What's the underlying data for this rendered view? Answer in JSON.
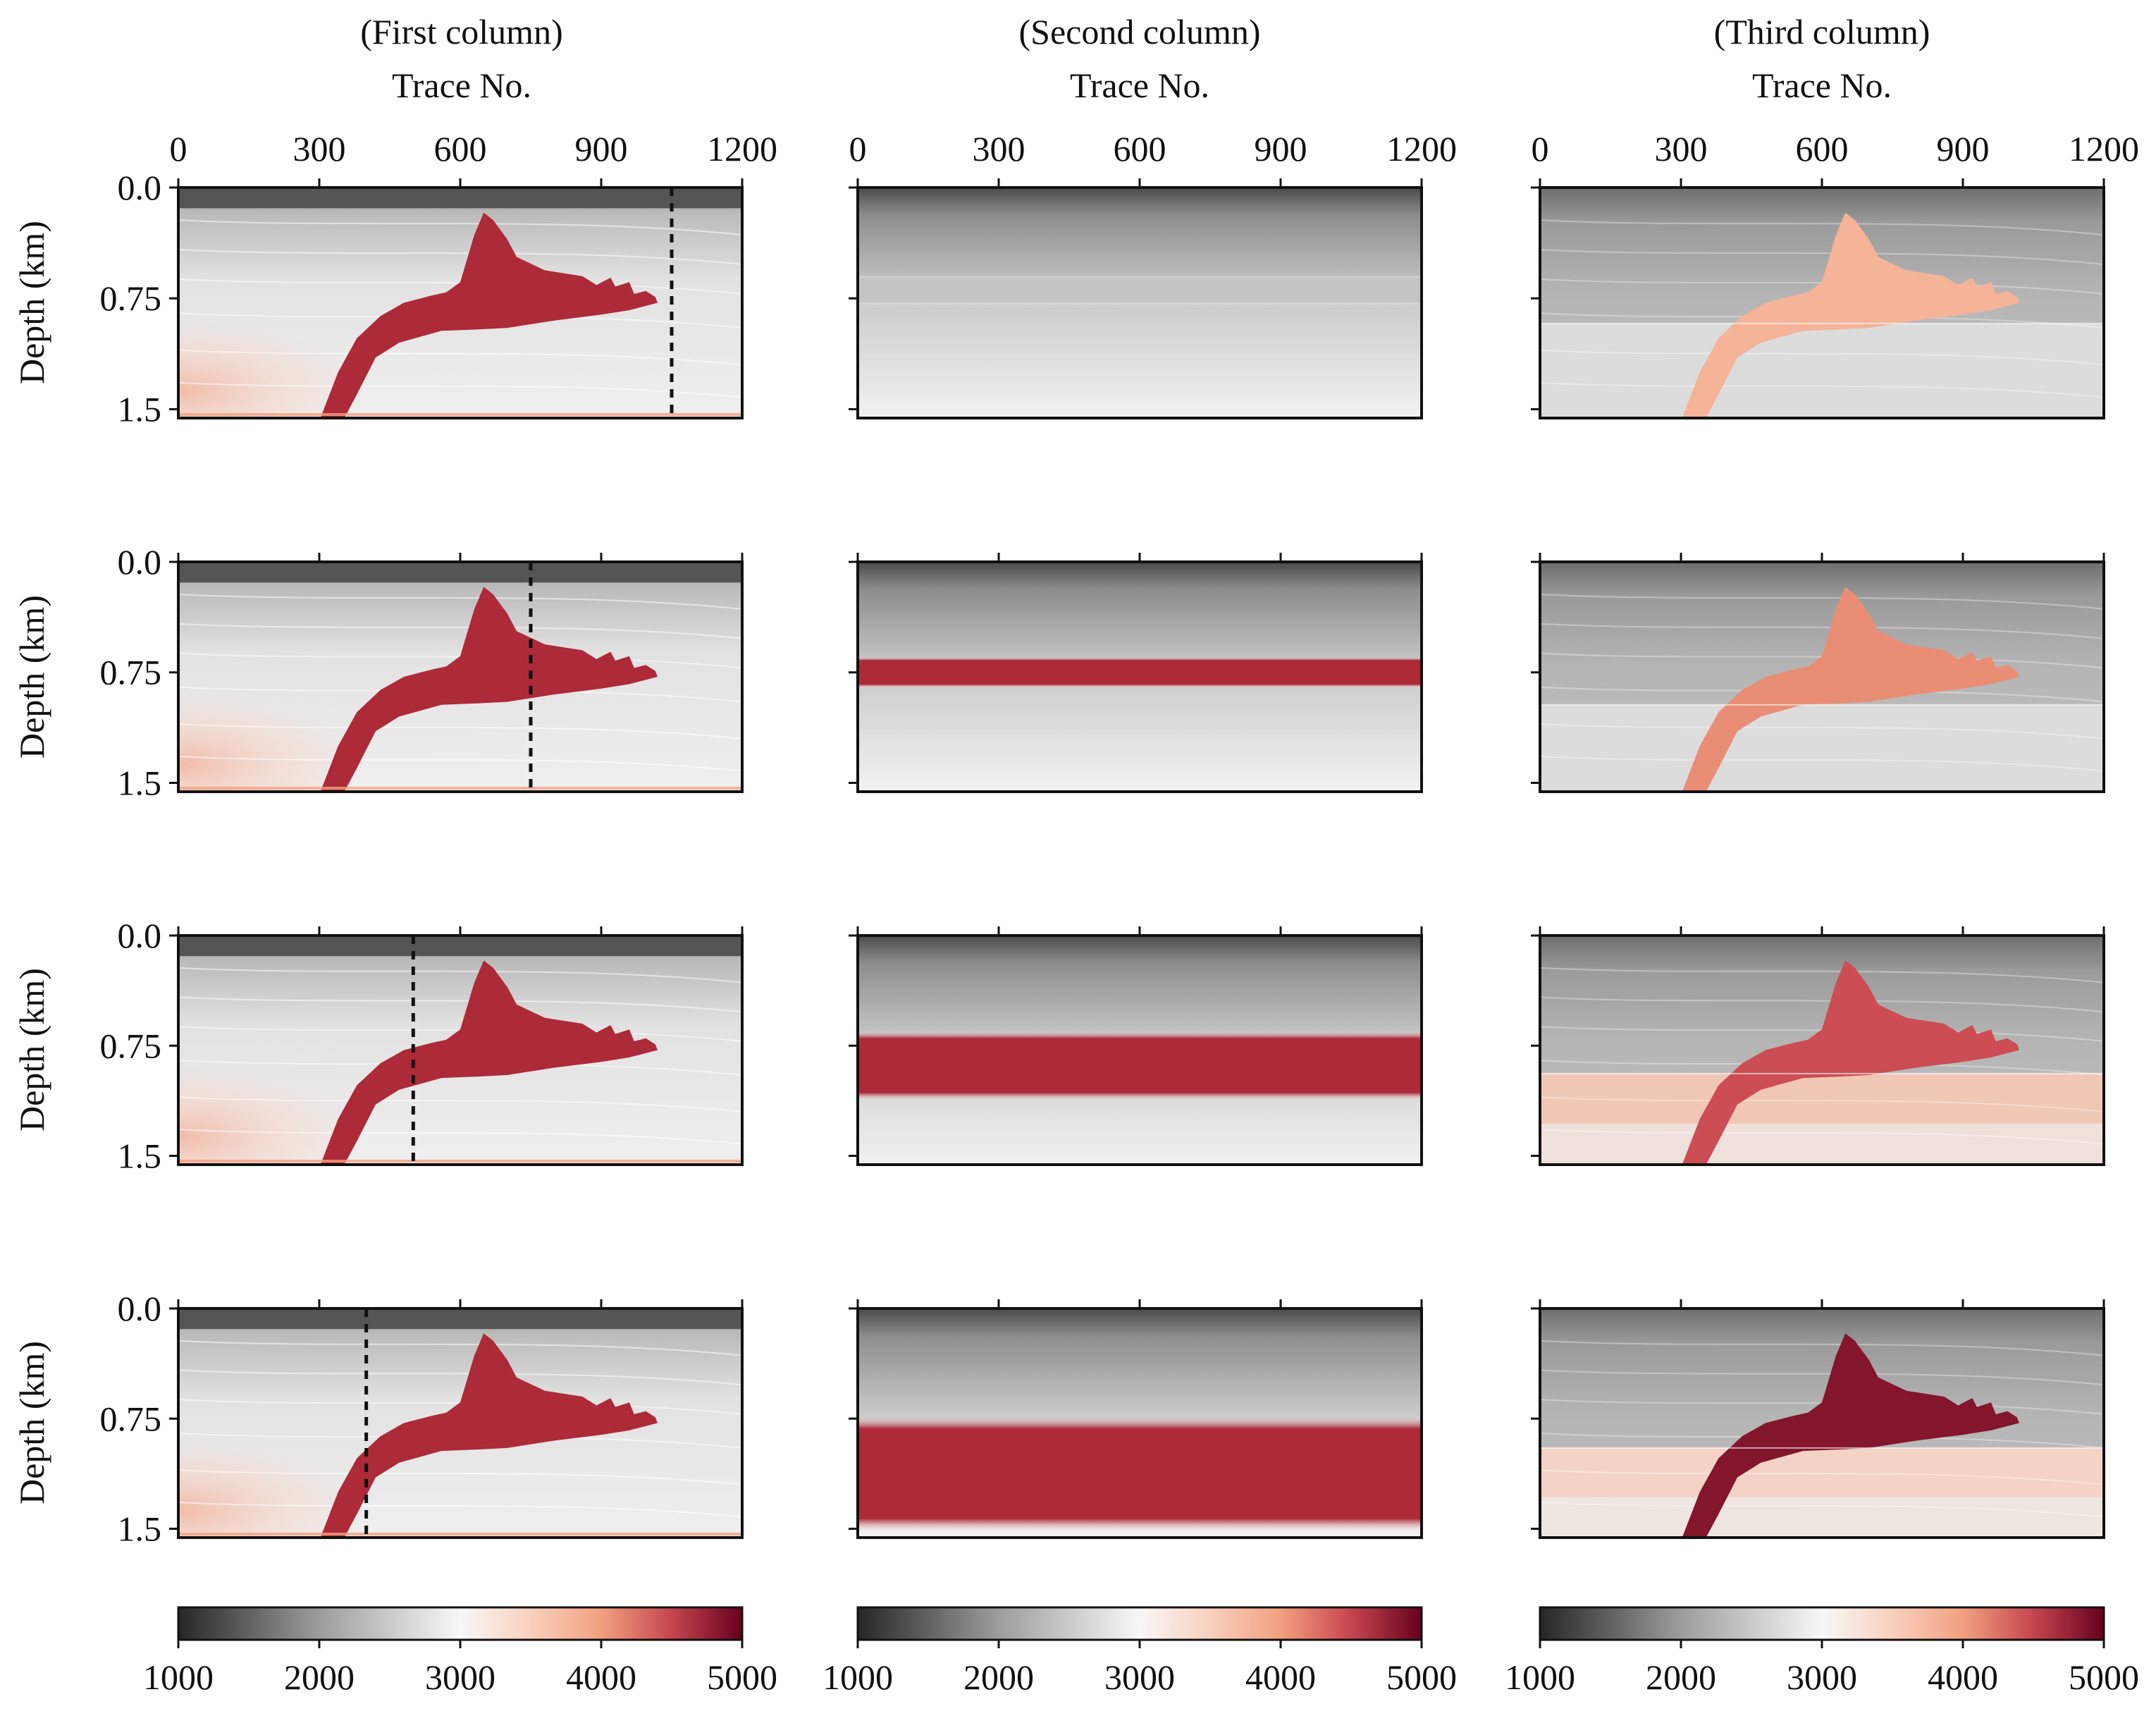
{
  "chart_data": {
    "type": "heatmap",
    "layout": "4x3 grid of velocity-model panels with one colorbar per column",
    "columns": [
      {
        "title": "(First column)",
        "xlabel": "Trace No."
      },
      {
        "title": "(Second column)",
        "xlabel": "Trace No."
      },
      {
        "title": "(Third column)",
        "xlabel": "Trace No."
      }
    ],
    "x_ticks": [
      0,
      300,
      600,
      900,
      1200
    ],
    "x_tick_labels": [
      "0",
      "300",
      "600",
      "900",
      "1200"
    ],
    "xlim": [
      0,
      1200
    ],
    "ylabel": "Depth (km)",
    "y_ticks": [
      0.0,
      0.75,
      1.5
    ],
    "y_tick_labels": [
      "0.0",
      "0.75",
      "1.5"
    ],
    "ylim": [
      1.56,
      0.0
    ],
    "colorbar": {
      "ticks": [
        1000,
        2000,
        3000,
        4000,
        5000
      ],
      "tick_labels": [
        "1000",
        "2000",
        "3000",
        "4000",
        "5000"
      ],
      "range": [
        1000,
        5000
      ],
      "colors": {
        "low": "#262626",
        "mid": "#f7f7f7",
        "high": "#67001f"
      }
    },
    "rows": [
      {
        "dashed_trace": 1050,
        "prior_band_km": [
          0.67,
          0.72
        ],
        "prior_band_strength": 0.05,
        "reference_depth_km": 0.92,
        "salt_velocity": 3800
      },
      {
        "dashed_trace": 750,
        "prior_band_km": [
          0.72,
          0.78
        ],
        "prior_band_strength": 1.0,
        "reference_depth_km": 0.97,
        "salt_velocity": 4100
      },
      {
        "dashed_trace": 500,
        "prior_band_km": [
          0.72,
          1.05
        ],
        "prior_band_strength": 1.0,
        "reference_depth_km": 0.94,
        "salt_velocity": 4450
      },
      {
        "dashed_trace": 400,
        "prior_band_km": [
          0.8,
          1.45
        ],
        "prior_band_strength": 1.0,
        "reference_depth_km": 0.95,
        "salt_velocity": 4850
      }
    ],
    "salt_body_outline_km": [
      [
        300,
        1.58
      ],
      [
        340,
        1.25
      ],
      [
        380,
        1.02
      ],
      [
        430,
        0.87
      ],
      [
        480,
        0.78
      ],
      [
        540,
        0.73
      ],
      [
        570,
        0.71
      ],
      [
        600,
        0.64
      ],
      [
        630,
        0.32
      ],
      [
        650,
        0.17
      ],
      [
        670,
        0.22
      ],
      [
        700,
        0.35
      ],
      [
        720,
        0.47
      ],
      [
        780,
        0.56
      ],
      [
        860,
        0.6
      ],
      [
        890,
        0.66
      ],
      [
        920,
        0.61
      ],
      [
        930,
        0.67
      ],
      [
        960,
        0.64
      ],
      [
        970,
        0.72
      ],
      [
        995,
        0.7
      ],
      [
        1015,
        0.74
      ],
      [
        1020,
        0.78
      ],
      [
        960,
        0.83
      ],
      [
        900,
        0.86
      ],
      [
        800,
        0.9
      ],
      [
        700,
        0.95
      ],
      [
        640,
        0.96
      ],
      [
        560,
        0.97
      ],
      [
        470,
        1.05
      ],
      [
        420,
        1.15
      ],
      [
        380,
        1.4
      ],
      [
        350,
        1.58
      ]
    ],
    "value_semantics": "velocity (m/s)"
  }
}
